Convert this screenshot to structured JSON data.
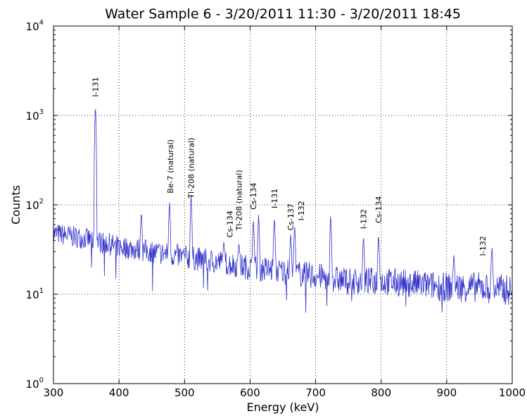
{
  "chart_data": {
    "type": "line",
    "title": "Water Sample 6 - 3/20/2011 11:30  - 3/20/2011 18:45",
    "xlabel": "Energy (keV)",
    "ylabel": "Counts",
    "xlim": [
      300,
      1000
    ],
    "ylim": [
      1,
      10000
    ],
    "y_scale": "log",
    "grid": true,
    "grid_style": "dotted",
    "line_color": "#3333cc",
    "x_ticks": [
      300,
      400,
      500,
      600,
      700,
      800,
      900,
      1000
    ],
    "x_tick_labels": [
      "300",
      "400",
      "500",
      "600",
      "700",
      "800",
      "900",
      "1000"
    ],
    "y_ticks": [
      1,
      10,
      100,
      1000,
      10000
    ],
    "y_tick_bases": [
      "10",
      "10",
      "10",
      "10",
      "10"
    ],
    "y_tick_exponents": [
      "0",
      "1",
      "2",
      "3",
      "4"
    ],
    "spectrum_profile": [
      {
        "x": 300,
        "y": 48
      },
      {
        "x": 350,
        "y": 42
      },
      {
        "x": 400,
        "y": 34
      },
      {
        "x": 450,
        "y": 30
      },
      {
        "x": 500,
        "y": 26
      },
      {
        "x": 550,
        "y": 23
      },
      {
        "x": 600,
        "y": 20
      },
      {
        "x": 650,
        "y": 18
      },
      {
        "x": 700,
        "y": 16
      },
      {
        "x": 750,
        "y": 14
      },
      {
        "x": 800,
        "y": 14
      },
      {
        "x": 850,
        "y": 13
      },
      {
        "x": 900,
        "y": 12
      },
      {
        "x": 950,
        "y": 12
      },
      {
        "x": 1000,
        "y": 11
      }
    ],
    "peaks": [
      {
        "x": 364,
        "y": 1350
      },
      {
        "x": 434,
        "y": 85
      },
      {
        "x": 477,
        "y": 110
      },
      {
        "x": 510,
        "y": 130
      },
      {
        "x": 560,
        "y": 40
      },
      {
        "x": 583,
        "y": 38
      },
      {
        "x": 605,
        "y": 70
      },
      {
        "x": 613,
        "y": 80
      },
      {
        "x": 637,
        "y": 75
      },
      {
        "x": 662,
        "y": 48
      },
      {
        "x": 668,
        "y": 60
      },
      {
        "x": 723,
        "y": 80
      },
      {
        "x": 773,
        "y": 45
      },
      {
        "x": 796,
        "y": 48
      },
      {
        "x": 911,
        "y": 28
      },
      {
        "x": 969,
        "y": 35
      }
    ],
    "annotations": [
      {
        "text": "I-131",
        "x": 364,
        "y": 1500
      },
      {
        "text": "Be-7 (natural)",
        "x": 478,
        "y": 125
      },
      {
        "text": "Tl-208 (natural)",
        "x": 510,
        "y": 110
      },
      {
        "text": "Cs-134",
        "x": 569,
        "y": 40
      },
      {
        "text": "Tl-208 (natural)",
        "x": 583,
        "y": 48
      },
      {
        "text": "Cs-134",
        "x": 605,
        "y": 82
      },
      {
        "text": "I-131",
        "x": 637,
        "y": 85
      },
      {
        "text": "Cs-137",
        "x": 662,
        "y": 48
      },
      {
        "text": "I-132",
        "x": 678,
        "y": 62
      },
      {
        "text": "I-132",
        "x": 773,
        "y": 50
      },
      {
        "text": "Cs-134",
        "x": 796,
        "y": 58
      },
      {
        "text": "I-132",
        "x": 955,
        "y": 25
      }
    ]
  }
}
